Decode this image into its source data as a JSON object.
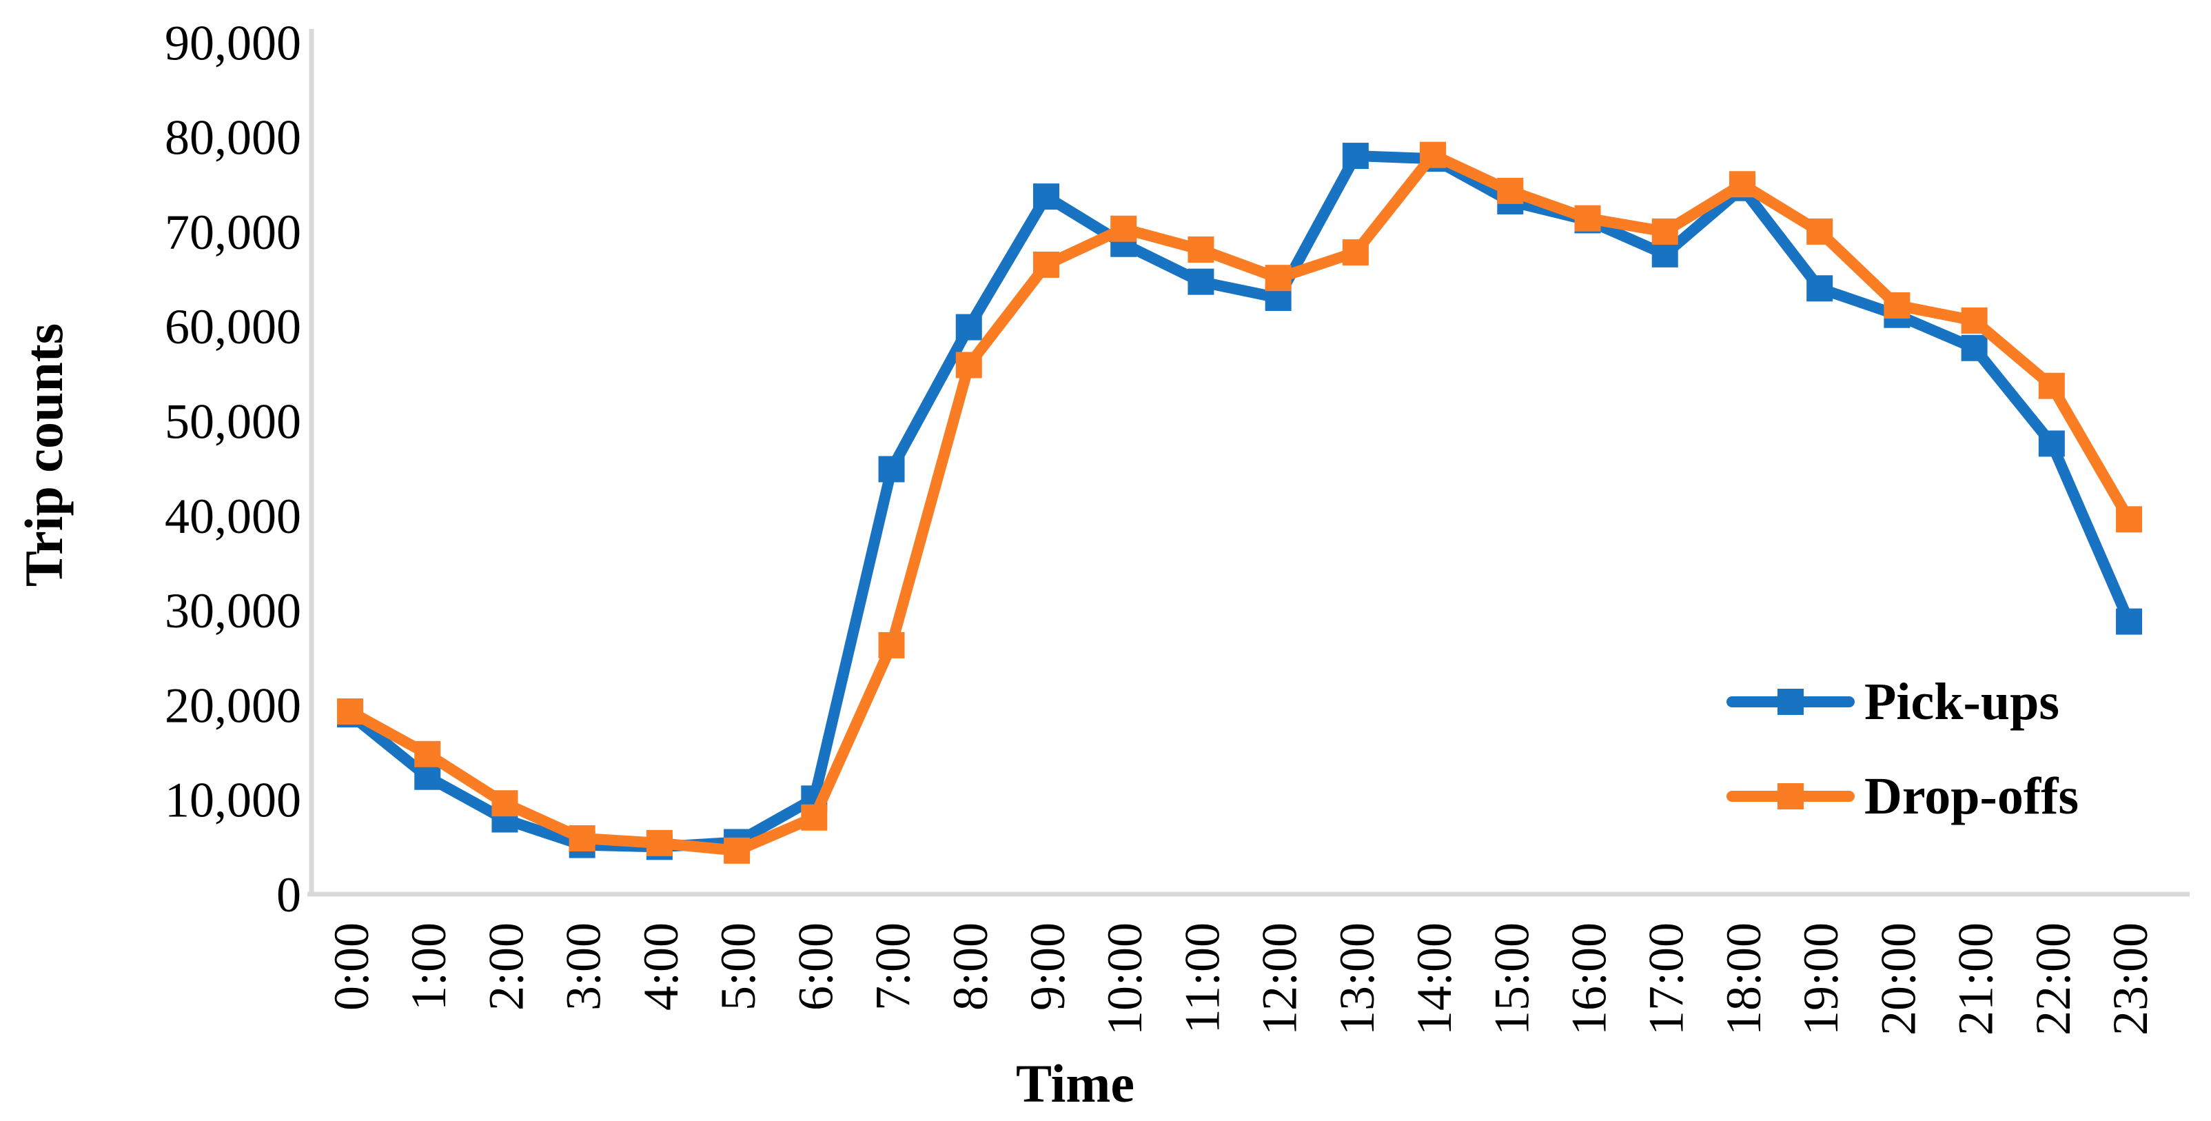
{
  "chart_data": {
    "type": "line",
    "title": "",
    "xlabel": "Time",
    "ylabel": "Trip counts",
    "categories": [
      "0:00",
      "1:00",
      "2:00",
      "3:00",
      "4:00",
      "5:00",
      "6:00",
      "7:00",
      "8:00",
      "9:00",
      "10:00",
      "11:00",
      "12:00",
      "13:00",
      "14:00",
      "15:00",
      "16:00",
      "17:00",
      "18:00",
      "19:00",
      "20:00",
      "21:00",
      "22:00",
      "23:00"
    ],
    "series": [
      {
        "name": "Pick-ups",
        "color": "#1973C3",
        "marker": "square",
        "values": [
          19000,
          12400,
          7900,
          5200,
          5000,
          5500,
          10100,
          44900,
          59900,
          73700,
          68700,
          64700,
          63000,
          78000,
          77700,
          73200,
          71200,
          67600,
          74600,
          64000,
          61200,
          57700,
          47600,
          28800
        ]
      },
      {
        "name": "Drop-offs",
        "color": "#FA7D23",
        "marker": "square",
        "values": [
          19300,
          14800,
          9600,
          5900,
          5400,
          4600,
          8100,
          26300,
          55900,
          66500,
          70300,
          68100,
          65100,
          67800,
          78100,
          74300,
          71400,
          70000,
          75000,
          70000,
          62200,
          60600,
          53700,
          39600
        ]
      }
    ],
    "ylim": [
      0,
      90000
    ],
    "y_tick_step": 10000,
    "y_tick_labels": [
      "0",
      "10,000",
      "20,000",
      "30,000",
      "40,000",
      "50,000",
      "60,000",
      "70,000",
      "80,000",
      "90,000"
    ],
    "grid": false,
    "legend_position": "right-middle",
    "axis_line_color": "#D9D9D9",
    "text_color": "#000000",
    "x_tick_rotation_deg": -90
  }
}
